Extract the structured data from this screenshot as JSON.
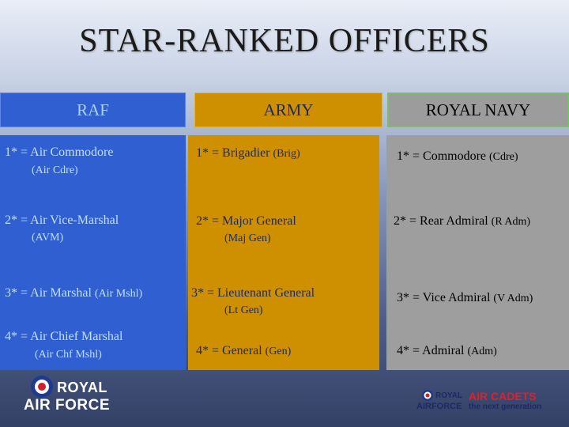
{
  "title": "STAR-RANKED OFFICERS",
  "headers": {
    "raf": "RAF",
    "army": "ARMY",
    "navy": "ROYAL NAVY"
  },
  "raf": [
    {
      "rank": "1* = Air Commodore",
      "abbr": "(Air Cdre)"
    },
    {
      "rank": "2* = Air Vice-Marshal",
      "abbr": "(AVM)"
    },
    {
      "rank": "3* = Air Marshal",
      "abbr": "(Air Mshl)"
    },
    {
      "rank": "4* = Air Chief Marshal",
      "abbr": "(Air Chf Mshl)"
    }
  ],
  "army": [
    {
      "rank": "1* = Brigadier",
      "abbr": "(Brig)"
    },
    {
      "rank": "2* = Major General",
      "abbr": "(Maj Gen)"
    },
    {
      "rank": "3* = Lieutenant General",
      "abbr": "(Lt Gen)"
    },
    {
      "rank": "4* = General",
      "abbr": "(Gen)"
    }
  ],
  "navy": [
    {
      "rank": "1* = Commodore",
      "abbr": "(Cdre)"
    },
    {
      "rank": "2* = Rear Admiral",
      "abbr": "(R Adm)"
    },
    {
      "rank": "3* = Vice Admiral",
      "abbr": "(V Adm)"
    },
    {
      "rank": "4* = Admiral",
      "abbr": "(Adm)"
    }
  ],
  "logos": {
    "raf": {
      "line1": "ROYAL",
      "line2": "AIR FORCE"
    },
    "cadets": {
      "royal": "ROYAL",
      "airforce": "AIRFORCE",
      "air_cadets": "AIR CADETS",
      "tagline": "the next generation"
    }
  },
  "colors": {
    "raf": "#2f5fd0",
    "army": "#cf9000",
    "navy": "#9e9e9e",
    "roundel_blue": "#1f3b8f",
    "roundel_red": "#d0202a",
    "cadets_red": "#e0202a"
  }
}
